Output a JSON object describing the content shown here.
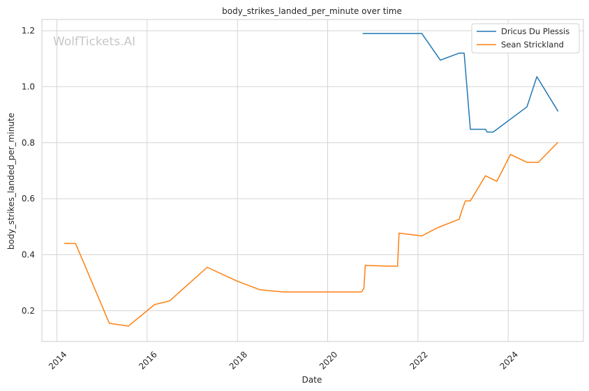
{
  "chart_data": {
    "type": "line",
    "title": "body_strikes_landed_per_minute over time",
    "xlabel": "Date",
    "ylabel": "body_strikes_landed_per_minute",
    "watermark": "WolfTickets.AI",
    "x_axis_type": "date",
    "xlim": [
      "2013-09-01",
      "2025-09-01"
    ],
    "ylim": [
      0.09,
      1.24
    ],
    "x_ticks": [
      "2014",
      "2016",
      "2018",
      "2020",
      "2022",
      "2024"
    ],
    "y_ticks": [
      "0.2",
      "0.4",
      "0.6",
      "0.8",
      "1.0",
      "1.2"
    ],
    "grid": true,
    "legend_position": "top-right",
    "series": [
      {
        "name": "Dricus Du Plessis",
        "color": "#1f77b4",
        "points": [
          [
            "2020-10-10",
            1.19
          ],
          [
            "2021-07-01",
            1.19
          ],
          [
            "2022-02-01",
            1.19
          ],
          [
            "2022-07-01",
            1.095
          ],
          [
            "2022-12-01",
            1.12
          ],
          [
            "2023-01-10",
            1.12
          ],
          [
            "2023-03-01",
            0.848
          ],
          [
            "2023-07-01",
            0.848
          ],
          [
            "2023-07-15",
            0.838
          ],
          [
            "2023-09-01",
            0.838
          ],
          [
            "2024-06-01",
            0.928
          ],
          [
            "2024-08-20",
            1.036
          ],
          [
            "2025-02-08",
            0.912
          ]
        ]
      },
      {
        "name": "Sean Strickland",
        "color": "#ff7f0e",
        "points": [
          [
            "2014-03-01",
            0.44
          ],
          [
            "2014-06-01",
            0.44
          ],
          [
            "2015-03-01",
            0.155
          ],
          [
            "2015-08-01",
            0.145
          ],
          [
            "2016-03-01",
            0.222
          ],
          [
            "2016-07-01",
            0.235
          ],
          [
            "2017-05-01",
            0.355
          ],
          [
            "2018-01-01",
            0.305
          ],
          [
            "2018-07-01",
            0.275
          ],
          [
            "2019-01-01",
            0.267
          ],
          [
            "2020-10-01",
            0.267
          ],
          [
            "2020-10-20",
            0.28
          ],
          [
            "2020-11-01",
            0.362
          ],
          [
            "2021-05-01",
            0.359
          ],
          [
            "2021-07-20",
            0.359
          ],
          [
            "2021-08-01",
            0.477
          ],
          [
            "2022-02-01",
            0.467
          ],
          [
            "2022-06-01",
            0.495
          ],
          [
            "2022-12-01",
            0.527
          ],
          [
            "2022-12-20",
            0.555
          ],
          [
            "2023-01-20",
            0.592
          ],
          [
            "2023-03-01",
            0.592
          ],
          [
            "2023-07-01",
            0.682
          ],
          [
            "2023-10-01",
            0.662
          ],
          [
            "2024-01-20",
            0.758
          ],
          [
            "2024-06-01",
            0.73
          ],
          [
            "2024-09-01",
            0.73
          ],
          [
            "2025-02-08",
            0.802
          ]
        ]
      }
    ]
  }
}
